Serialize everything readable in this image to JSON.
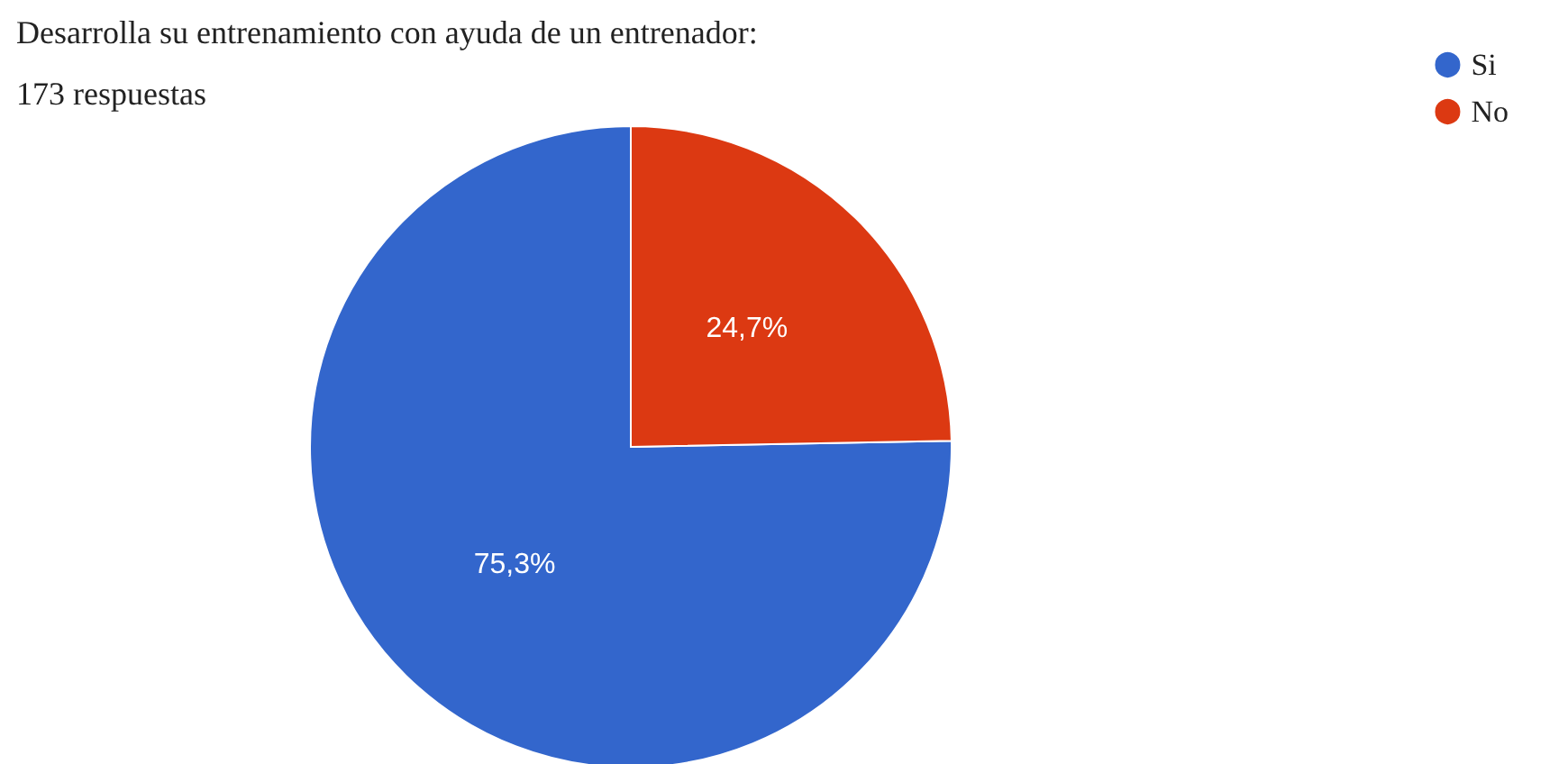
{
  "chart_data": {
    "type": "pie",
    "title": "Desarrolla su entrenamiento con ayuda de un entrenador:",
    "subtitle": "173 respuestas",
    "categories": [
      "Si",
      "No"
    ],
    "values": [
      75.3,
      24.7
    ],
    "colors": [
      "#3366cc",
      "#dc3912"
    ],
    "value_labels": [
      "75,3%",
      "24,7%"
    ],
    "legend": "top right"
  }
}
